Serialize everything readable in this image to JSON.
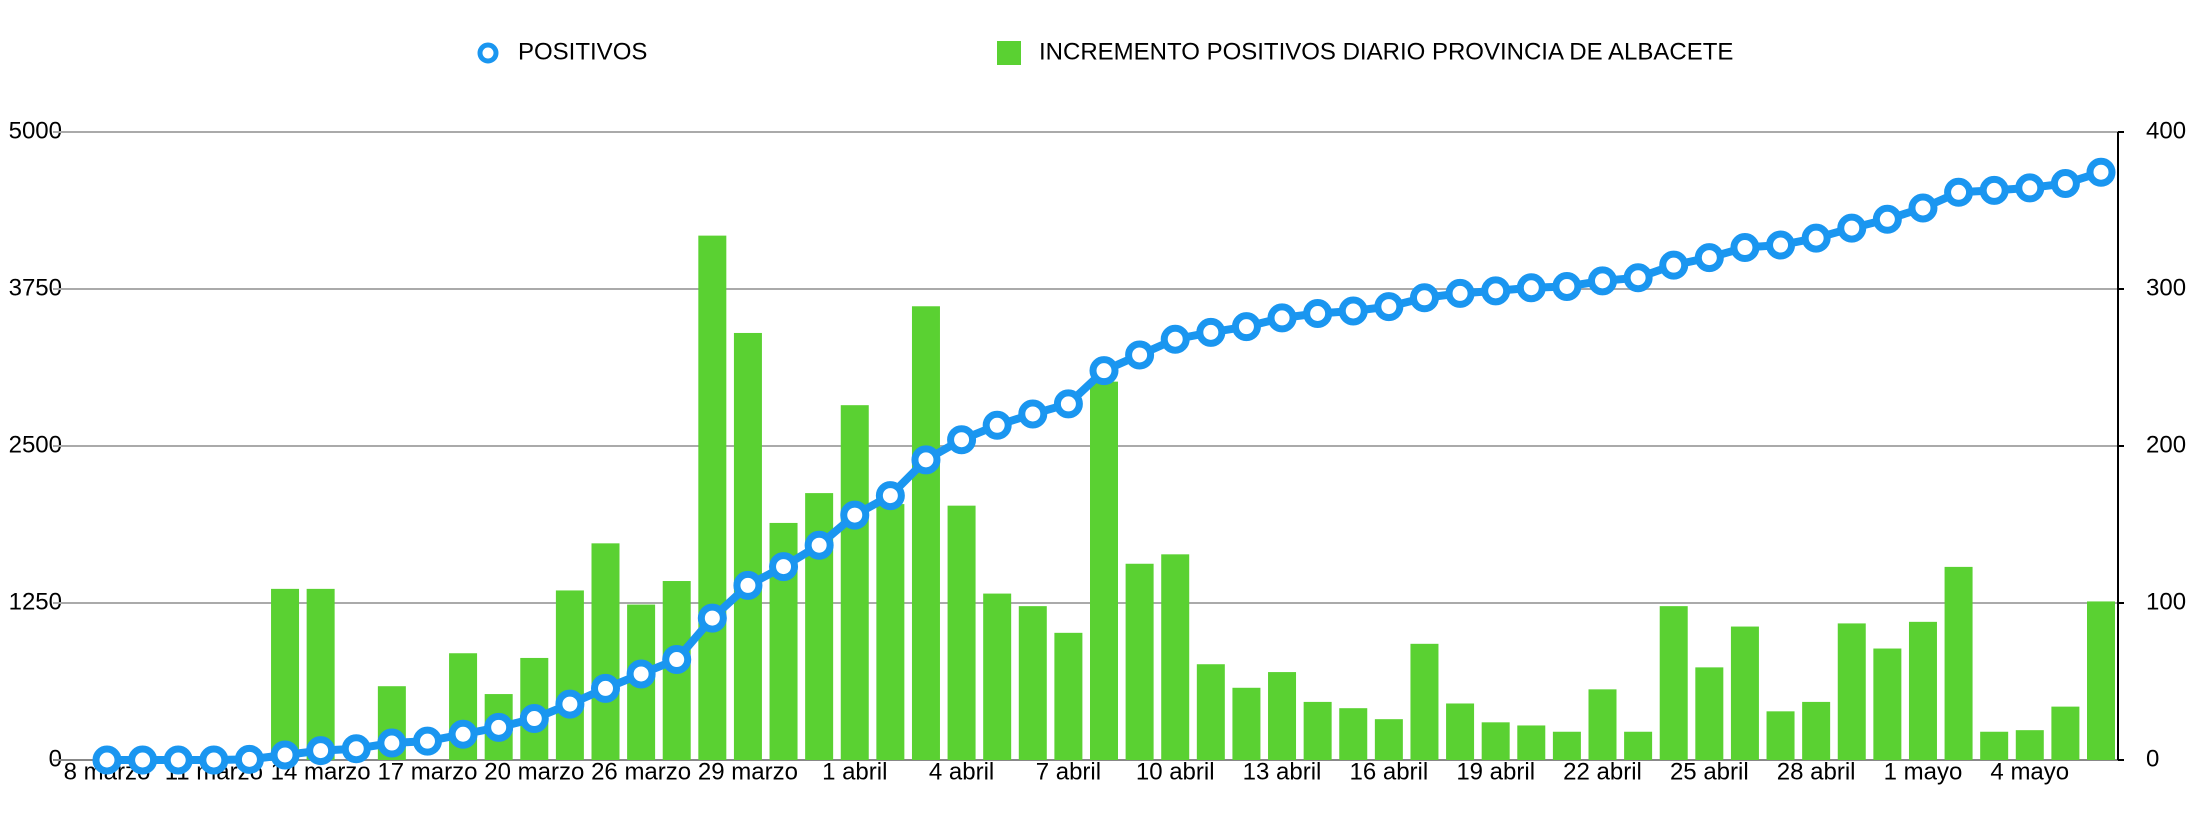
{
  "chart_data": {
    "type": "bar-line",
    "categories": [
      "8 marzo",
      null,
      null,
      "11 marzo",
      null,
      null,
      "14 marzo",
      null,
      null,
      "17 marzo",
      null,
      null,
      "20 marzo",
      null,
      null,
      "26 marzo",
      null,
      null,
      "29 marzo",
      null,
      null,
      "1 abril",
      null,
      null,
      "4 abril",
      null,
      null,
      "7 abril",
      null,
      null,
      "10 abril",
      null,
      null,
      "13 abril",
      null,
      null,
      "16 abril",
      null,
      null,
      "19 abril",
      null,
      null,
      "22 abril",
      null,
      null,
      "25 abril",
      null,
      null,
      "28 abril",
      null,
      null,
      "1 mayo",
      null,
      null,
      "4 mayo",
      null,
      null
    ],
    "series": [
      {
        "name": "POSITIVOS",
        "color": "#1a96f0",
        "kind": "line",
        "values": [
          0,
          0,
          0,
          0,
          5,
          40,
          75,
          90,
          135,
          150,
          205,
          260,
          330,
          445,
          570,
          685,
          800,
          1130,
          1390,
          1540,
          1710,
          1950,
          2105,
          2390,
          2550,
          2665,
          2755,
          2835,
          3100,
          3225,
          3350,
          3405,
          3450,
          3520,
          3555,
          3575,
          3610,
          3680,
          3715,
          3735,
          3760,
          3770,
          3815,
          3840,
          3940,
          4000,
          4080,
          4100,
          4155,
          4235,
          4305,
          4395,
          4520,
          4535,
          4555,
          4590,
          4680
        ]
      },
      {
        "name": "INCREMENTO POSITIVOS DIARIO PROVINCIA DE ALBACETE",
        "color": "#5ad132",
        "kind": "bar",
        "axis": "y2",
        "values": [
          0,
          0,
          0,
          0,
          0,
          109,
          109,
          0,
          47,
          0,
          68,
          42,
          65,
          108,
          138,
          99,
          114,
          334,
          272,
          151,
          170,
          226,
          163,
          289,
          162,
          106,
          98,
          81,
          241,
          125,
          131,
          61,
          46,
          56,
          37,
          33,
          26,
          74,
          36,
          24,
          22,
          18,
          45,
          18,
          98,
          59,
          85,
          31,
          37,
          87,
          71,
          88,
          123,
          18,
          19,
          34,
          101
        ]
      }
    ],
    "ylim": [
      0,
      5000
    ],
    "yticks": [
      0,
      1250,
      2500,
      3750,
      5000
    ],
    "y2lim": [
      0,
      400
    ],
    "y2ticks": [
      0,
      100,
      200,
      300,
      400
    ],
    "grid": true,
    "legend": "top"
  }
}
